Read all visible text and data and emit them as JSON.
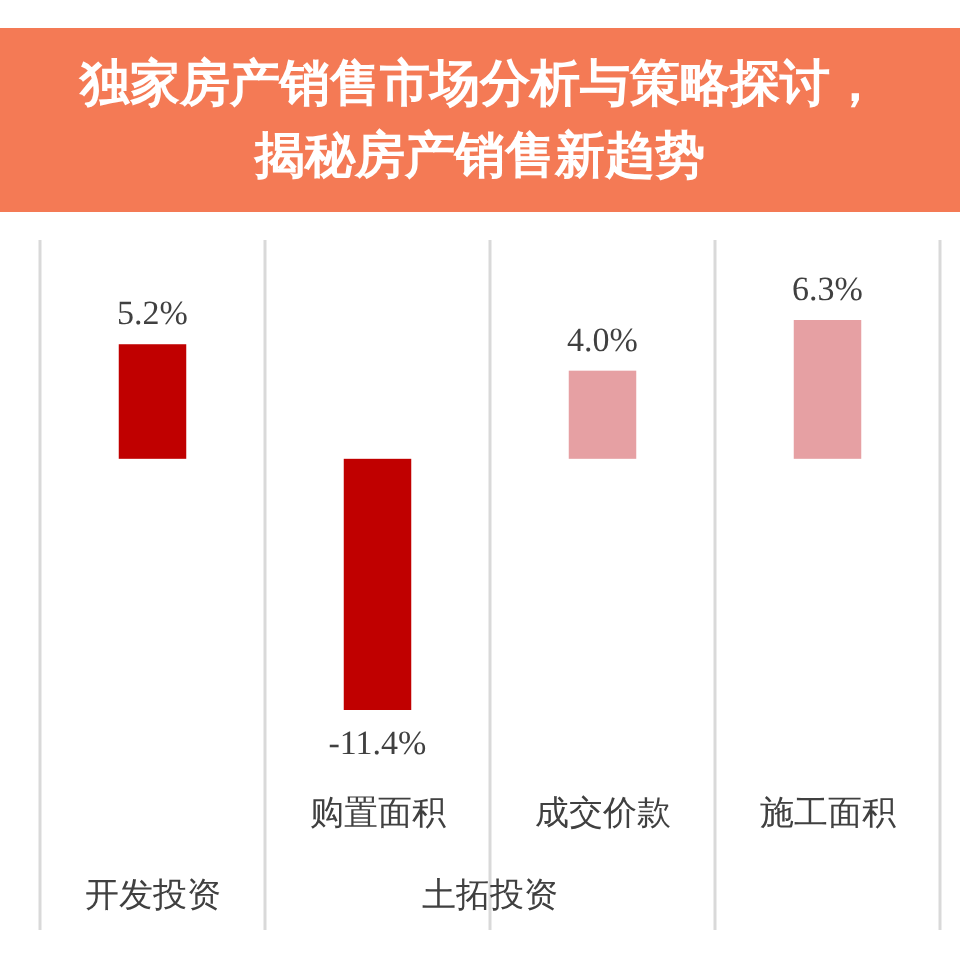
{
  "chart_data": {
    "type": "bar",
    "title": "独家房产销售市场分析与策略探讨，揭秘房产销售新趋势",
    "categories": [
      null,
      "购置面积",
      "成交价款",
      "施工面积"
    ],
    "values": [
      5.2,
      -11.4,
      4.0,
      6.3
    ],
    "colors": [
      "#c00000",
      "#c00000",
      "#e6a0a3",
      "#e6a0a3"
    ],
    "value_labels": [
      "5.2%",
      "-11.4%",
      "4.0%",
      "6.3%"
    ],
    "annotations": [
      "开发投资",
      "土拓投资"
    ]
  }
}
